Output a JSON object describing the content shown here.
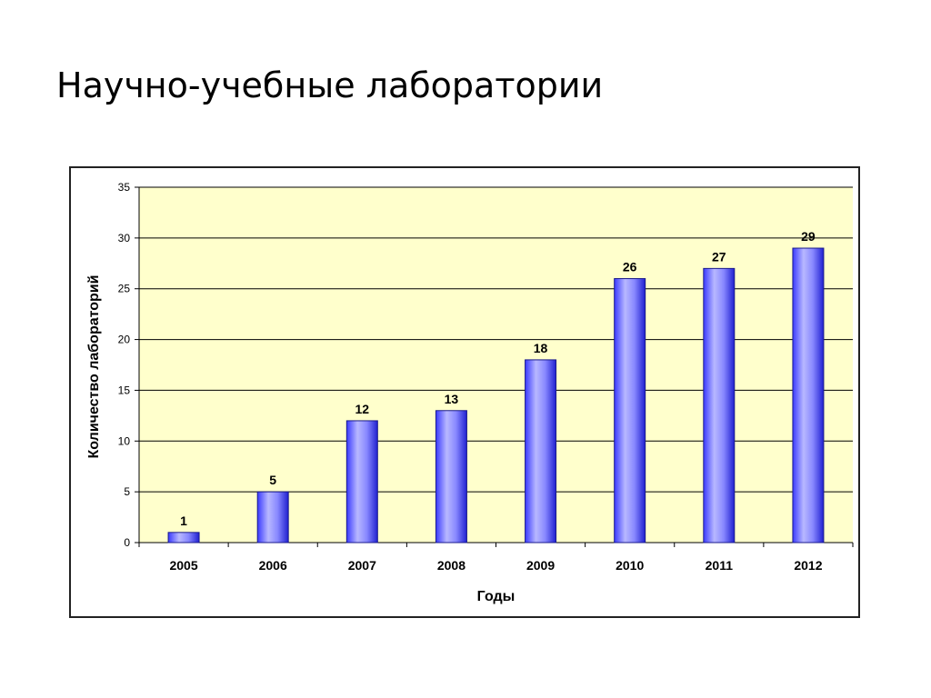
{
  "slide": {
    "title": "Научно-учебные лаборатории"
  },
  "chart_data": {
    "type": "bar",
    "categories": [
      "2005",
      "2006",
      "2007",
      "2008",
      "2009",
      "2010",
      "2011",
      "2012"
    ],
    "values": [
      1,
      5,
      12,
      13,
      18,
      26,
      27,
      29
    ],
    "xlabel": "Годы",
    "ylabel": "Количество лабораторий",
    "ylim": [
      0,
      35
    ],
    "yticks": [
      0,
      5,
      10,
      15,
      20,
      25,
      30,
      35
    ],
    "grid": true,
    "legend": "none",
    "colors": {
      "plot_background": "#FFFFCC",
      "bar_fill": "#8080FF",
      "bar_edge": "#1A1A8C",
      "gridline": "#000000"
    }
  }
}
